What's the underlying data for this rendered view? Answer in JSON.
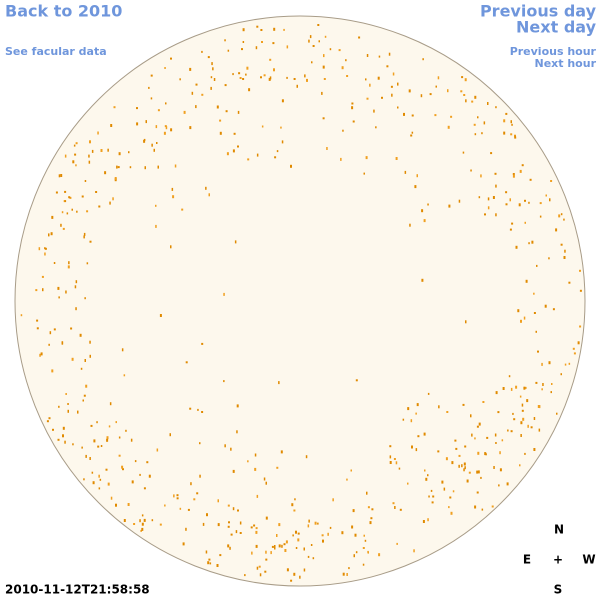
{
  "links": {
    "back": "Back to 2010",
    "facular": "See facular data",
    "previous_day": "Previous day",
    "next_day": "Next day",
    "previous_hour": "Previous hour",
    "next_hour": "Next hour"
  },
  "timestamp": "2010-11-12T21:58:58",
  "compass": {
    "north": "N",
    "east": "E",
    "center": "+",
    "west": "W",
    "south": "S"
  }
}
